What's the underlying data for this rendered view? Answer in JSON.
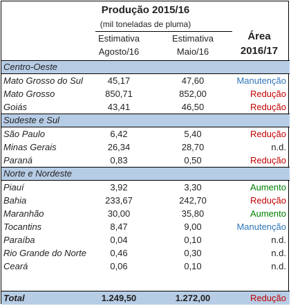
{
  "header": {
    "title": "Produção 2015/16",
    "subtitle": "(mil toneladas de pluma)",
    "col1_line1": "Estimativa",
    "col1_line2": "Agosto/16",
    "col2_line1": "Estimativa",
    "col2_line2": "Maio/16",
    "col3_line1": "Área",
    "col3_line2": "2016/17"
  },
  "sections": [
    {
      "name": "Centro-Oeste",
      "rows": [
        {
          "state": "Mato Grosso do Sul",
          "ago": "45,17",
          "mai": "47,60",
          "status": "Manutenção"
        },
        {
          "state": "Mato Grosso",
          "ago": "850,71",
          "mai": "852,00",
          "status": "Redução"
        },
        {
          "state": "Goiás",
          "ago": "43,41",
          "mai": "46,50",
          "status": "Redução"
        }
      ]
    },
    {
      "name": "Sudeste e Sul",
      "rows": [
        {
          "state": "São Paulo",
          "ago": "6,42",
          "mai": "5,40",
          "status": "Redução"
        },
        {
          "state": "Minas Gerais",
          "ago": "26,34",
          "mai": "28,70",
          "status": "n.d."
        },
        {
          "state": "Paraná",
          "ago": "0,83",
          "mai": "0,50",
          "status": "Redução"
        }
      ]
    },
    {
      "name": "Norte e Nordeste",
      "rows": [
        {
          "state": "Piauí",
          "ago": "3,92",
          "mai": "3,30",
          "status": "Aumento"
        },
        {
          "state": "Bahia",
          "ago": "233,67",
          "mai": "242,70",
          "status": "Redução"
        },
        {
          "state": "Maranhão",
          "ago": "30,00",
          "mai": "35,80",
          "status": "Aumento"
        },
        {
          "state": "Tocantins",
          "ago": "8,47",
          "mai": "9,00",
          "status": "Manutenção"
        },
        {
          "state": "Paraíba",
          "ago": "0,04",
          "mai": "0,10",
          "status": "n.d."
        },
        {
          "state": "Rio Grande do Norte",
          "ago": "0,46",
          "mai": "0,30",
          "status": "n.d."
        },
        {
          "state": "Ceará",
          "ago": "0,06",
          "mai": "0,10",
          "status": "n.d."
        }
      ]
    }
  ],
  "total": {
    "label": "Total",
    "ago": "1.249,50",
    "mai": "1.272,00",
    "status": "Redução"
  },
  "colors": {
    "section_bg": "#b7cde6",
    "reducao": "#c00000",
    "manutencao": "#2e75b6",
    "aumento": "#008000",
    "nd": "#222222"
  }
}
